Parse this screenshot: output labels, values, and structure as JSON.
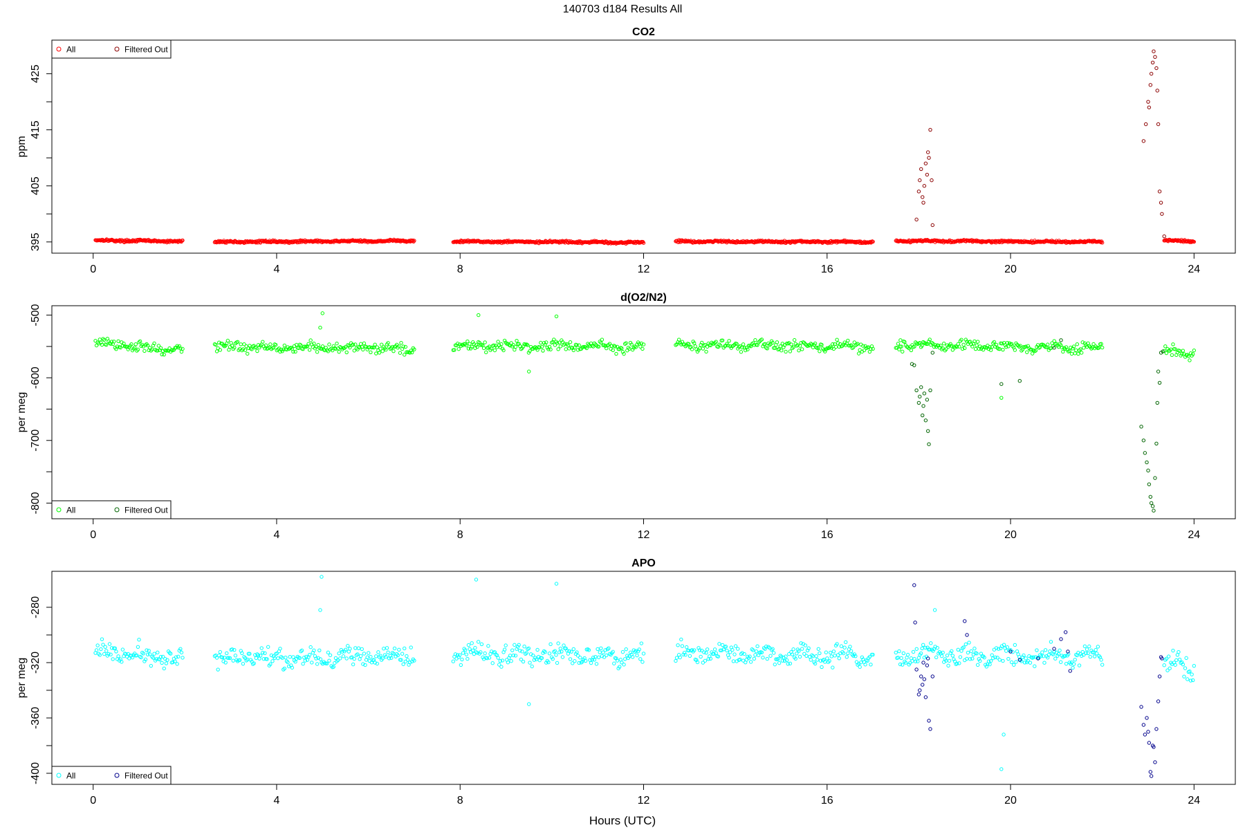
{
  "figure": {
    "title": "140703   d184   Results All",
    "xlabel": "Hours (UTC)"
  },
  "chart_data": [
    {
      "type": "scatter",
      "title": "CO2",
      "ylabel": "ppm",
      "xlim": [
        -0.9,
        24.9
      ],
      "ylim": [
        393,
        431
      ],
      "xticks": [
        0,
        4,
        8,
        12,
        16,
        20,
        24
      ],
      "yticks": [
        395,
        400,
        405,
        410,
        415,
        420,
        425
      ],
      "yticklabels": [
        "395",
        "",
        "405",
        "",
        "415",
        "",
        "425"
      ],
      "legend": {
        "position": "top-left",
        "entries": [
          "All",
          "Filtered Out"
        ]
      },
      "series": [
        {
          "name": "All",
          "color": "#ff0000",
          "segments": [
            {
              "x": [
                0.05,
                1.95
              ],
              "y": [
                395.3,
                395.1
              ]
            },
            {
              "x": [
                2.65,
                7.0
              ],
              "y": [
                395.0,
                395.2
              ]
            },
            {
              "x": [
                7.85,
                12.0
              ],
              "y": [
                395.1,
                394.9
              ]
            },
            {
              "x": [
                12.7,
                17.0
              ],
              "y": [
                395.1,
                395.0
              ]
            },
            {
              "x": [
                17.5,
                22.0
              ],
              "y": [
                395.2,
                395.0
              ]
            },
            {
              "x": [
                23.35,
                24.0
              ],
              "y": [
                395.3,
                395.1
              ]
            }
          ]
        },
        {
          "name": "Filtered Out",
          "color": "#8b0000",
          "points": [
            [
              17.95,
              399
            ],
            [
              18.0,
              404
            ],
            [
              18.02,
              406
            ],
            [
              18.05,
              408
            ],
            [
              18.08,
              403
            ],
            [
              18.1,
              402
            ],
            [
              18.12,
              405
            ],
            [
              18.15,
              409
            ],
            [
              18.18,
              407
            ],
            [
              18.2,
              411
            ],
            [
              18.22,
              410
            ],
            [
              18.25,
              415
            ],
            [
              18.28,
              406
            ],
            [
              18.3,
              398
            ],
            [
              22.9,
              413
            ],
            [
              22.95,
              416
            ],
            [
              23.0,
              420
            ],
            [
              23.02,
              419
            ],
            [
              23.05,
              423
            ],
            [
              23.07,
              425
            ],
            [
              23.1,
              427
            ],
            [
              23.12,
              429
            ],
            [
              23.15,
              428
            ],
            [
              23.18,
              426
            ],
            [
              23.2,
              422
            ],
            [
              23.22,
              416
            ],
            [
              23.25,
              404
            ],
            [
              23.28,
              402
            ],
            [
              23.3,
              400
            ],
            [
              23.35,
              396
            ]
          ]
        }
      ]
    },
    {
      "type": "scatter",
      "title": "d(O2/N2)",
      "ylabel": "per meg",
      "xlim": [
        -0.9,
        24.9
      ],
      "ylim": [
        -825,
        -485
      ],
      "xticks": [
        0,
        4,
        8,
        12,
        16,
        20,
        24
      ],
      "yticks": [
        -500,
        -550,
        -600,
        -650,
        -700,
        -750,
        -800
      ],
      "yticklabels": [
        "-500",
        "",
        "-600",
        "",
        "-700",
        "",
        "-800"
      ],
      "legend": {
        "position": "bottom-left",
        "entries": [
          "All",
          "Filtered Out"
        ]
      },
      "series": [
        {
          "name": "All",
          "color": "#00ff00",
          "segments": [
            {
              "x": [
                0.05,
                1.95
              ],
              "y": [
                -545,
                -556
              ]
            },
            {
              "x": [
                2.65,
                7.0
              ],
              "y": [
                -550,
                -553
              ]
            },
            {
              "x": [
                7.85,
                12.0
              ],
              "y": [
                -548,
                -550
              ]
            },
            {
              "x": [
                12.7,
                17.0
              ],
              "y": [
                -548,
                -550
              ]
            },
            {
              "x": [
                17.5,
                22.0
              ],
              "y": [
                -548,
                -552
              ]
            },
            {
              "x": [
                23.35,
                24.0
              ],
              "y": [
                -558,
                -562
              ]
            }
          ],
          "outliers": [
            [
              5.0,
              -497
            ],
            [
              4.95,
              -520
            ],
            [
              8.4,
              -500
            ],
            [
              10.1,
              -502
            ],
            [
              9.5,
              -590
            ],
            [
              19.8,
              -632
            ],
            [
              17.6,
              -540
            ]
          ]
        },
        {
          "name": "Filtered Out",
          "color": "#006400",
          "points": [
            [
              17.85,
              -578
            ],
            [
              17.9,
              -580
            ],
            [
              17.95,
              -620
            ],
            [
              18.0,
              -640
            ],
            [
              18.02,
              -630
            ],
            [
              18.05,
              -615
            ],
            [
              18.08,
              -660
            ],
            [
              18.1,
              -645
            ],
            [
              18.12,
              -625
            ],
            [
              18.15,
              -668
            ],
            [
              18.18,
              -635
            ],
            [
              18.2,
              -685
            ],
            [
              18.22,
              -706
            ],
            [
              18.25,
              -620
            ],
            [
              18.3,
              -560
            ],
            [
              19.8,
              -610
            ],
            [
              20.2,
              -605
            ],
            [
              20.95,
              -552
            ],
            [
              21.1,
              -540
            ],
            [
              22.85,
              -678
            ],
            [
              22.9,
              -700
            ],
            [
              22.93,
              -720
            ],
            [
              22.97,
              -735
            ],
            [
              23.0,
              -748
            ],
            [
              23.02,
              -770
            ],
            [
              23.05,
              -790
            ],
            [
              23.07,
              -800
            ],
            [
              23.1,
              -805
            ],
            [
              23.12,
              -812
            ],
            [
              23.15,
              -760
            ],
            [
              23.18,
              -705
            ],
            [
              23.2,
              -640
            ],
            [
              23.22,
              -590
            ],
            [
              23.25,
              -608
            ],
            [
              23.28,
              -560
            ],
            [
              23.32,
              -558
            ]
          ]
        }
      ]
    },
    {
      "type": "scatter",
      "title": "APO",
      "ylabel": "per meg",
      "xlim": [
        -0.9,
        24.9
      ],
      "ylim": [
        -408,
        -254
      ],
      "xticks": [
        0,
        4,
        8,
        12,
        16,
        20,
        24
      ],
      "yticks": [
        -280,
        -300,
        -320,
        -340,
        -360,
        -380,
        -400
      ],
      "yticklabels": [
        "-280",
        "",
        "-320",
        "",
        "-360",
        "",
        "-400"
      ],
      "legend": {
        "position": "bottom-left",
        "entries": [
          "All",
          "Filtered Out"
        ]
      },
      "series": [
        {
          "name": "All",
          "color": "#00ffff",
          "segments": [
            {
              "x": [
                0.05,
                1.95
              ],
              "y": [
                -312,
                -318
              ]
            },
            {
              "x": [
                2.65,
                7.0
              ],
              "y": [
                -316,
                -316
              ]
            },
            {
              "x": [
                7.85,
                12.0
              ],
              "y": [
                -314,
                -314
              ]
            },
            {
              "x": [
                12.7,
                17.0
              ],
              "y": [
                -313,
                -316
              ]
            },
            {
              "x": [
                17.5,
                22.0
              ],
              "y": [
                -314,
                -316
              ]
            },
            {
              "x": [
                23.35,
                24.0
              ],
              "y": [
                -320,
                -325
              ]
            }
          ],
          "outliers": [
            [
              4.98,
              -258
            ],
            [
              4.95,
              -282
            ],
            [
              8.35,
              -260
            ],
            [
              10.1,
              -263
            ],
            [
              9.5,
              -350
            ],
            [
              19.8,
              -397
            ],
            [
              19.85,
              -372
            ],
            [
              18.35,
              -282
            ]
          ]
        },
        {
          "name": "Filtered Out",
          "color": "#00008b",
          "points": [
            [
              17.9,
              -264
            ],
            [
              17.92,
              -291
            ],
            [
              17.95,
              -325
            ],
            [
              18.0,
              -343
            ],
            [
              18.02,
              -340
            ],
            [
              18.05,
              -330
            ],
            [
              18.08,
              -336
            ],
            [
              18.1,
              -320
            ],
            [
              18.12,
              -332
            ],
            [
              18.15,
              -345
            ],
            [
              18.18,
              -322
            ],
            [
              18.2,
              -317
            ],
            [
              18.22,
              -362
            ],
            [
              18.25,
              -368
            ],
            [
              18.3,
              -330
            ],
            [
              19.0,
              -290
            ],
            [
              19.05,
              -300
            ],
            [
              20.0,
              -312
            ],
            [
              20.2,
              -318
            ],
            [
              20.6,
              -317
            ],
            [
              20.95,
              -310
            ],
            [
              21.1,
              -303
            ],
            [
              21.2,
              -298
            ],
            [
              21.25,
              -312
            ],
            [
              21.3,
              -326
            ],
            [
              22.85,
              -352
            ],
            [
              22.9,
              -365
            ],
            [
              22.93,
              -372
            ],
            [
              22.97,
              -360
            ],
            [
              23.0,
              -370
            ],
            [
              23.02,
              -378
            ],
            [
              23.05,
              -399
            ],
            [
              23.07,
              -402
            ],
            [
              23.1,
              -380
            ],
            [
              23.12,
              -381
            ],
            [
              23.15,
              -392
            ],
            [
              23.18,
              -368
            ],
            [
              23.22,
              -348
            ],
            [
              23.25,
              -330
            ],
            [
              23.28,
              -316
            ],
            [
              23.3,
              -317
            ]
          ]
        }
      ]
    }
  ]
}
